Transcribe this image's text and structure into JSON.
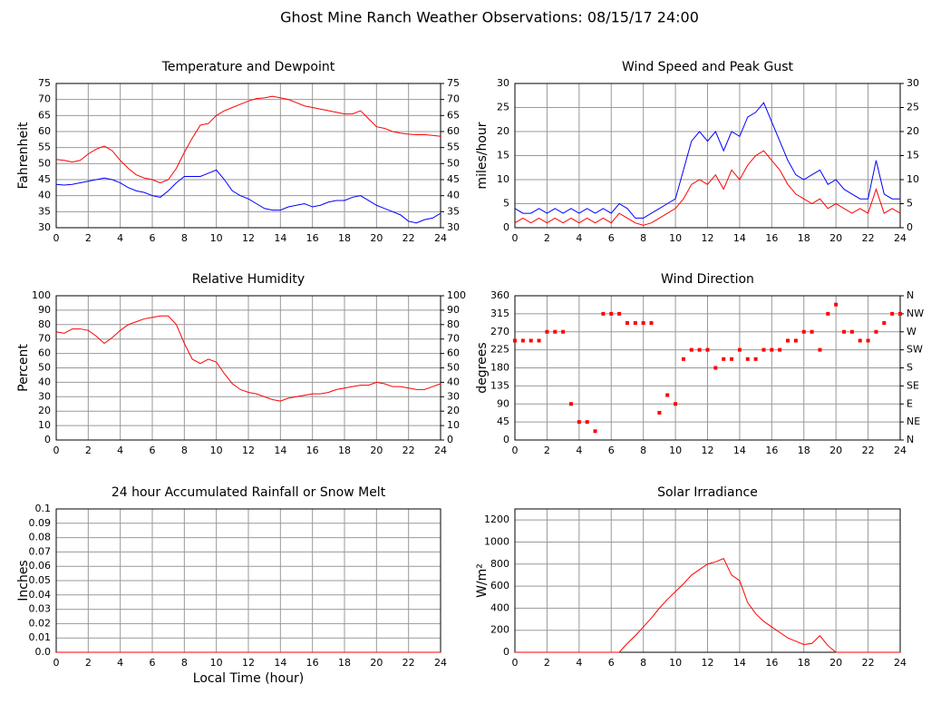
{
  "title": "Ghost Mine Ranch Weather Observations: 08/15/17 24:00",
  "chart_data": [
    {
      "type": "line",
      "title": "Temperature and Dewpoint",
      "ylabel": "Fahrenheit",
      "grid": true,
      "x": [
        0,
        0.5,
        1,
        1.5,
        2,
        2.5,
        3,
        3.5,
        4,
        4.5,
        5,
        5.5,
        6,
        6.5,
        7,
        7.5,
        8,
        8.5,
        9,
        9.5,
        10,
        10.5,
        11,
        11.5,
        12,
        12.5,
        13,
        13.5,
        14,
        14.5,
        15,
        15.5,
        16,
        16.5,
        17,
        17.5,
        18,
        18.5,
        19,
        19.5,
        20,
        20.5,
        21,
        21.5,
        22,
        22.5,
        23,
        23.5,
        24
      ],
      "xlim": [
        0,
        24
      ],
      "xticks": [
        0,
        2,
        4,
        6,
        8,
        10,
        12,
        14,
        16,
        18,
        20,
        22,
        24
      ],
      "ylim": [
        30,
        75
      ],
      "yticks": [
        30,
        35,
        40,
        45,
        50,
        55,
        60,
        65,
        70,
        75
      ],
      "y2lim": [
        30,
        75
      ],
      "y2ticks": [
        30,
        35,
        40,
        45,
        50,
        55,
        60,
        65,
        70,
        75
      ],
      "series": [
        {
          "color": "#ff0000",
          "values": [
            51.3,
            51,
            50.5,
            51,
            53,
            54.5,
            55.5,
            54,
            51,
            48.5,
            46.5,
            45.5,
            45,
            44,
            45,
            48.5,
            53.5,
            58,
            62,
            62.5,
            65,
            66.5,
            67.5,
            68.5,
            69.5,
            70.3,
            70.5,
            71,
            70.5,
            70,
            69,
            68,
            67.5,
            67,
            66.5,
            66,
            65.5,
            65.5,
            66.5,
            64,
            61.5,
            61,
            60,
            59.5,
            59.2,
            59,
            59,
            58.8,
            58.5
          ]
        },
        {
          "color": "#0000ff",
          "values": [
            43.5,
            43.3,
            43.5,
            44,
            44.5,
            45,
            45.5,
            45,
            44,
            42.5,
            41.5,
            41,
            40,
            39.5,
            41.5,
            44,
            46,
            46,
            46,
            47,
            48,
            45,
            41.5,
            40,
            39,
            37.5,
            36,
            35.5,
            35.5,
            36.5,
            37,
            37.5,
            36.5,
            37,
            38,
            38.5,
            38.5,
            39.5,
            40,
            38.5,
            37,
            36,
            35,
            34,
            32,
            31.5,
            32.5,
            33,
            34.5
          ]
        }
      ]
    },
    {
      "type": "line",
      "title": "Wind Speed and Peak Gust",
      "ylabel": "miles/hour",
      "grid": true,
      "x": [
        0,
        0.5,
        1,
        1.5,
        2,
        2.5,
        3,
        3.5,
        4,
        4.5,
        5,
        5.5,
        6,
        6.5,
        7,
        7.5,
        8,
        8.5,
        9,
        9.5,
        10,
        10.5,
        11,
        11.5,
        12,
        12.5,
        13,
        13.5,
        14,
        14.5,
        15,
        15.5,
        16,
        16.5,
        17,
        17.5,
        18,
        18.5,
        19,
        19.5,
        20,
        20.5,
        21,
        21.5,
        22,
        22.5,
        23,
        23.5,
        24
      ],
      "xlim": [
        0,
        24
      ],
      "xticks": [
        0,
        2,
        4,
        6,
        8,
        10,
        12,
        14,
        16,
        18,
        20,
        22,
        24
      ],
      "ylim": [
        0,
        30
      ],
      "yticks": [
        0,
        5,
        10,
        15,
        20,
        25,
        30
      ],
      "y2lim": [
        0,
        30
      ],
      "y2ticks": [
        0,
        5,
        10,
        15,
        20,
        25,
        30
      ],
      "series": [
        {
          "color": "#ff0000",
          "values": [
            1,
            2,
            1,
            2,
            1,
            2,
            1,
            2,
            1,
            2,
            1,
            2,
            1,
            3,
            2,
            1,
            0.5,
            1,
            2,
            3,
            4,
            6,
            9,
            10,
            9,
            11,
            8,
            12,
            10,
            13,
            15,
            16,
            14,
            12,
            9,
            7,
            6,
            5,
            6,
            4,
            5,
            4,
            3,
            4,
            3,
            8,
            3,
            4,
            3
          ]
        },
        {
          "color": "#0000ff",
          "values": [
            4,
            3,
            3,
            4,
            3,
            4,
            3,
            4,
            3,
            4,
            3,
            4,
            3,
            5,
            4,
            2,
            2,
            3,
            4,
            5,
            6,
            12,
            18,
            20,
            18,
            20,
            16,
            20,
            19,
            23,
            24,
            26,
            22,
            18,
            14,
            11,
            10,
            11,
            12,
            9,
            10,
            8,
            7,
            6,
            6,
            14,
            7,
            6,
            6
          ]
        }
      ]
    },
    {
      "type": "line",
      "title": "Relative Humidity",
      "ylabel": "Percent",
      "grid": true,
      "x": [
        0,
        0.5,
        1,
        1.5,
        2,
        2.5,
        3,
        3.5,
        4,
        4.5,
        5,
        5.5,
        6,
        6.5,
        7,
        7.5,
        8,
        8.5,
        9,
        9.5,
        10,
        10.5,
        11,
        11.5,
        12,
        12.5,
        13,
        13.5,
        14,
        14.5,
        15,
        15.5,
        16,
        16.5,
        17,
        17.5,
        18,
        18.5,
        19,
        19.5,
        20,
        20.5,
        21,
        21.5,
        22,
        22.5,
        23,
        23.5,
        24
      ],
      "xlim": [
        0,
        24
      ],
      "xticks": [
        0,
        2,
        4,
        6,
        8,
        10,
        12,
        14,
        16,
        18,
        20,
        22,
        24
      ],
      "ylim": [
        0,
        100
      ],
      "yticks": [
        0,
        10,
        20,
        30,
        40,
        50,
        60,
        70,
        80,
        90,
        100
      ],
      "y2lim": [
        0,
        100
      ],
      "y2ticks": [
        0,
        10,
        20,
        30,
        40,
        50,
        60,
        70,
        80,
        90,
        100
      ],
      "series": [
        {
          "color": "#ff0000",
          "values": [
            75,
            74,
            77,
            77,
            76,
            72,
            67,
            71,
            76,
            80,
            82,
            84,
            85,
            86,
            86,
            80,
            67,
            56,
            53,
            56,
            54,
            46,
            39,
            35,
            33,
            32,
            30,
            28,
            27,
            29,
            30,
            31,
            32,
            32,
            33,
            35,
            36,
            37,
            38,
            38,
            40,
            39,
            37,
            37,
            36,
            35,
            35,
            37,
            39
          ]
        }
      ]
    },
    {
      "type": "scatter",
      "title": "Wind Direction",
      "ylabel": "degrees",
      "grid": true,
      "x": [
        0,
        0.5,
        1,
        1.5,
        2,
        2.5,
        3,
        3.5,
        4,
        4.5,
        5,
        5.5,
        6,
        6.5,
        7,
        7.5,
        8,
        8.5,
        9,
        9.5,
        10,
        10.5,
        11,
        11.5,
        12,
        12.5,
        13,
        13.5,
        14,
        14.5,
        15,
        15.5,
        16,
        16.5,
        17,
        17.5,
        18,
        18.5,
        19,
        19.5,
        20,
        20.5,
        21,
        21.5,
        22,
        22.5,
        23,
        23.5,
        24
      ],
      "xlim": [
        0,
        24
      ],
      "xticks": [
        0,
        2,
        4,
        6,
        8,
        10,
        12,
        14,
        16,
        18,
        20,
        22,
        24
      ],
      "ylim": [
        0,
        360
      ],
      "yticks": [
        0,
        45,
        90,
        135,
        180,
        225,
        270,
        315,
        360
      ],
      "y2lim": [
        0,
        360
      ],
      "y2ticks": [
        {
          "value": 0,
          "label": "N"
        },
        {
          "value": 45,
          "label": "NE"
        },
        {
          "value": 90,
          "label": "E"
        },
        {
          "value": 135,
          "label": "SE"
        },
        {
          "value": 180,
          "label": "S"
        },
        {
          "value": 225,
          "label": "SW"
        },
        {
          "value": 270,
          "label": "W"
        },
        {
          "value": 315,
          "label": "NW"
        },
        {
          "value": 360,
          "label": "N"
        }
      ],
      "series": [
        {
          "color": "#ff0000",
          "values": [
            248,
            248,
            248,
            248,
            270,
            270,
            270,
            90,
            45,
            45,
            22,
            315,
            315,
            315,
            292,
            292,
            292,
            292,
            68,
            112,
            90,
            202,
            225,
            225,
            225,
            180,
            202,
            202,
            225,
            202,
            202,
            225,
            225,
            225,
            248,
            248,
            270,
            270,
            225,
            315,
            338,
            270,
            270,
            248,
            248,
            270,
            292,
            315,
            315
          ]
        }
      ]
    },
    {
      "type": "line",
      "title": "24 hour Accumulated Rainfall or Snow Melt",
      "ylabel": "Inches",
      "xlabel": "Local Time (hour)",
      "grid": true,
      "x": [
        0,
        24
      ],
      "xlim": [
        0,
        24
      ],
      "xticks": [
        0,
        2,
        4,
        6,
        8,
        10,
        12,
        14,
        16,
        18,
        20,
        22,
        24
      ],
      "ylim": [
        0,
        0.1
      ],
      "yticks": [
        {
          "value": 0,
          "label": "0.0"
        },
        0.01,
        0.02,
        0.03,
        0.04,
        0.05,
        0.06,
        0.07,
        0.08,
        0.09,
        0.1
      ],
      "series": [
        {
          "color": "#ff0000",
          "values": [
            0,
            0
          ]
        }
      ]
    },
    {
      "type": "line",
      "title": "Solar Irradiance",
      "ylabel": "W/m²",
      "grid": true,
      "x": [
        0,
        0.5,
        1,
        1.5,
        2,
        2.5,
        3,
        3.5,
        4,
        4.5,
        5,
        5.5,
        6,
        6.5,
        7,
        7.5,
        8,
        8.5,
        9,
        9.5,
        10,
        10.5,
        11,
        11.5,
        12,
        12.5,
        13,
        13.5,
        14,
        14.5,
        15,
        15.5,
        16,
        16.5,
        17,
        17.5,
        18,
        18.5,
        19,
        19.5,
        20,
        20.5,
        21,
        21.5,
        22,
        22.5,
        23,
        23.5,
        24
      ],
      "xlim": [
        0,
        24
      ],
      "xticks": [
        0,
        2,
        4,
        6,
        8,
        10,
        12,
        14,
        16,
        18,
        20,
        22,
        24
      ],
      "ylim": [
        0,
        1300
      ],
      "yticks": [
        0,
        200,
        400,
        600,
        800,
        1000,
        1200
      ],
      "series": [
        {
          "color": "#ff0000",
          "values": [
            0,
            0,
            0,
            0,
            0,
            0,
            0,
            0,
            0,
            0,
            0,
            0,
            0,
            0,
            80,
            150,
            230,
            310,
            400,
            480,
            550,
            620,
            700,
            750,
            800,
            820,
            850,
            700,
            650,
            450,
            350,
            280,
            230,
            180,
            130,
            100,
            70,
            80,
            150,
            60,
            0,
            0,
            0,
            0,
            0,
            0,
            0,
            0,
            0
          ]
        }
      ]
    }
  ]
}
